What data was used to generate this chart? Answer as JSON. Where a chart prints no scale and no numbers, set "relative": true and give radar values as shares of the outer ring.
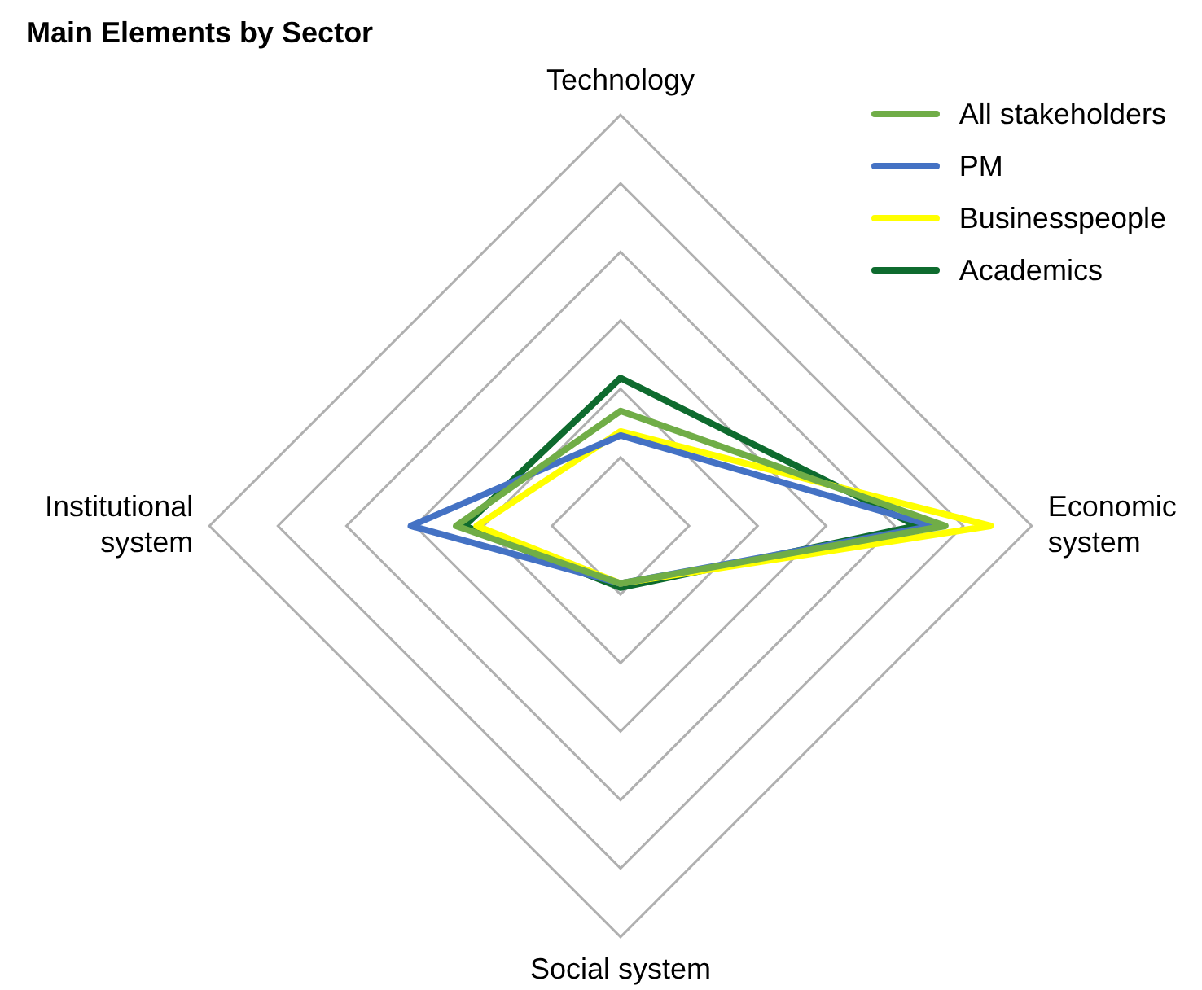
{
  "chart_data": {
    "type": "radar",
    "title": "Main Elements by Sector",
    "relative": true,
    "grid": true,
    "legend": "top right",
    "marker": "none",
    "categories": [
      "Technology",
      "Economic\nsystem",
      "Social system",
      "Institutional\nsystem"
    ],
    "series": [
      {
        "name": "All stakeholders",
        "color": "#70ad47",
        "values": [
          0.28,
          0.79,
          0.14,
          0.4
        ]
      },
      {
        "name": "PM",
        "color": "#4472c4",
        "values": [
          0.22,
          0.76,
          0.14,
          0.51
        ]
      },
      {
        "name": "Businesspeople",
        "color": "#ffff00",
        "values": [
          0.23,
          0.9,
          0.14,
          0.35
        ]
      },
      {
        "name": "Academics",
        "color": "#0e6b2e",
        "values": [
          0.36,
          0.72,
          0.15,
          0.38
        ]
      }
    ]
  }
}
